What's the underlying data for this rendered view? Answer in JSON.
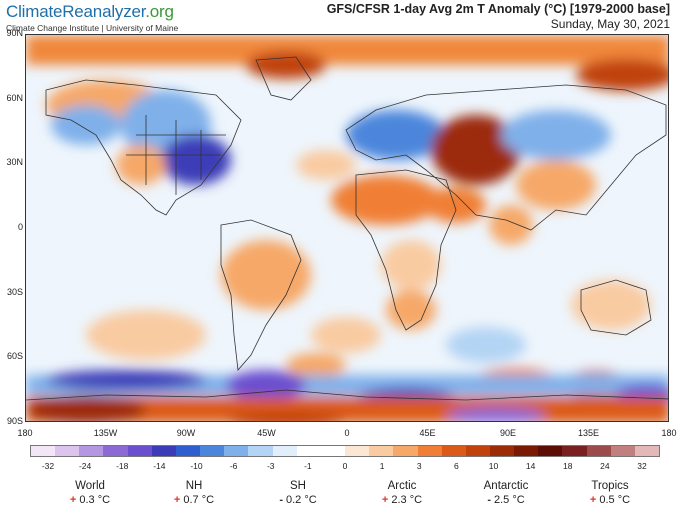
{
  "brand": {
    "name": "ClimateReanalyzer",
    "suffix": ".org",
    "subtitle": "Climate Change Institute | University of Maine"
  },
  "title": "GFS/CFSR 1-day Avg 2m T Anomaly (°C) [1979-2000 base]",
  "date": "Sunday, May 30, 2021",
  "lat_labels": [
    "90N",
    "60N",
    "30N",
    "0",
    "30S",
    "60S",
    "90S"
  ],
  "lon_labels": [
    "180",
    "135W",
    "90W",
    "45W",
    "0",
    "45E",
    "90E",
    "135E",
    "180"
  ],
  "colorbar": {
    "labels": [
      "-32",
      "-24",
      "-18",
      "-14",
      "-10",
      "-6",
      "-3",
      "-1",
      "0",
      "1",
      "3",
      "6",
      "10",
      "14",
      "18",
      "24",
      "32"
    ],
    "colors": [
      "#f3e6f7",
      "#dcc4ef",
      "#b596e3",
      "#8c6ad6",
      "#6a4fcf",
      "#3c3cb8",
      "#2f5fcf",
      "#4c86dc",
      "#7fb0ea",
      "#b3d4f4",
      "#e2eefa",
      "#ffffff",
      "#ffffff",
      "#fbe7d3",
      "#f9cba1",
      "#f6a868",
      "#f07f35",
      "#dc5a17",
      "#c0420d",
      "#9c2c08",
      "#7a1a05",
      "#5c0e04",
      "#7a2020",
      "#9c4a4a",
      "#c08080",
      "#e2b8b8"
    ]
  },
  "stats": [
    {
      "name": "World",
      "sign": "+",
      "value": "0.3 °C"
    },
    {
      "name": "NH",
      "sign": "+",
      "value": "0.7 °C"
    },
    {
      "name": "SH",
      "sign": "-",
      "value": "0.2 °C"
    },
    {
      "name": "Arctic",
      "sign": "+",
      "value": "2.3 °C"
    },
    {
      "name": "Antarctic",
      "sign": "-",
      "value": "2.5 °C"
    },
    {
      "name": "Tropics",
      "sign": "+",
      "value": "0.5 °C"
    }
  ],
  "palette": {
    "warm": "#f0873a",
    "warm_light": "#f9c597",
    "hot": "#a8350b",
    "cold": "#4c86dc",
    "cold_light": "#b3d4f4",
    "very_cold": "#5a4fcf",
    "neutral": "#eef5fc"
  }
}
